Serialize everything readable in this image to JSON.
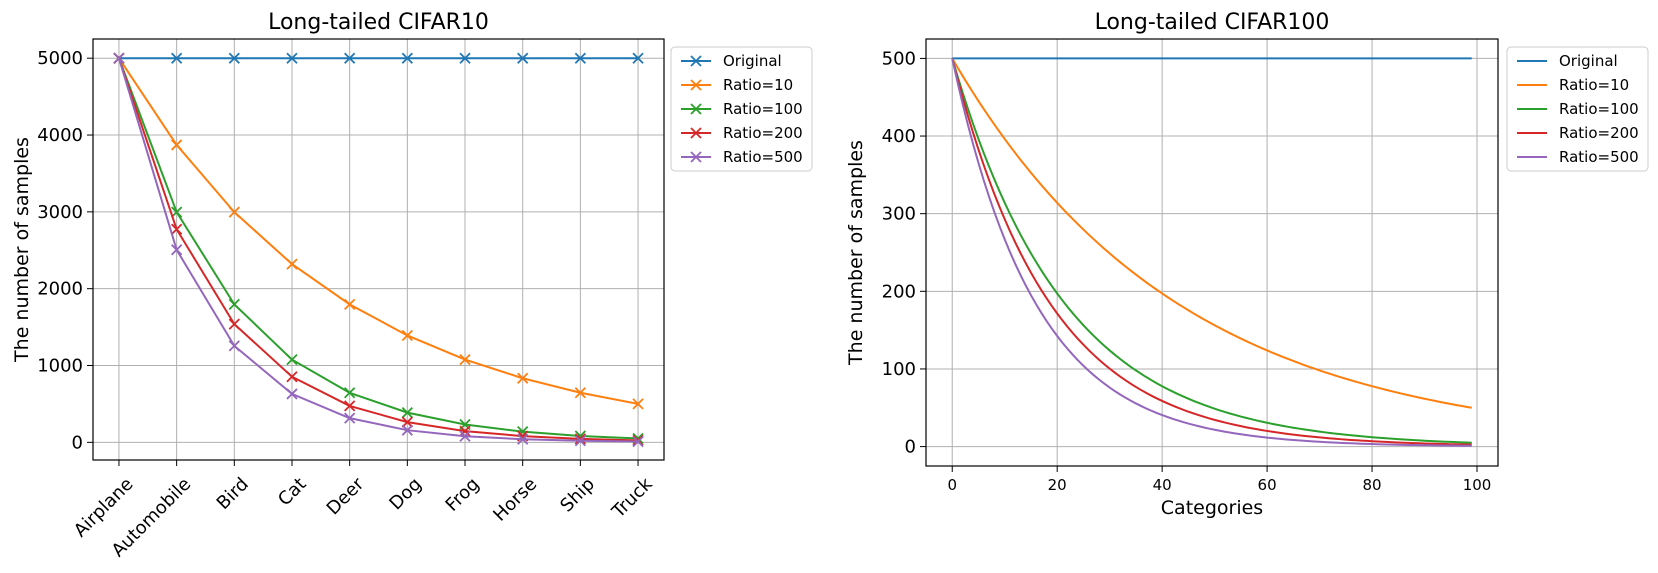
{
  "chart_data": [
    {
      "type": "line",
      "title": "Long-tailed CIFAR10",
      "xlabel": "",
      "ylabel": "The number of samples",
      "categories": [
        "Airplane",
        "Automobile",
        "Bird",
        "Cat",
        "Deer",
        "Dog",
        "Frog",
        "Horse",
        "Ship",
        "Truck"
      ],
      "ylim": [
        -230,
        5250
      ],
      "yticks": [
        0,
        1000,
        2000,
        3000,
        4000,
        5000
      ],
      "grid": true,
      "markers": true,
      "legend": "outside-upper-right",
      "series": [
        {
          "name": "Original",
          "color": "#1f77b4",
          "values": [
            5000,
            5000,
            5000,
            5000,
            5000,
            5000,
            5000,
            5000,
            5000,
            5000
          ]
        },
        {
          "name": "Ratio=10",
          "color": "#ff7f0e",
          "values": [
            5000,
            3871,
            2997,
            2320,
            1796,
            1391,
            1077,
            834,
            645,
            500
          ]
        },
        {
          "name": "Ratio=100",
          "color": "#2ca02c",
          "values": [
            5000,
            2997,
            1796,
            1077,
            645,
            387,
            232,
            139,
            83,
            50
          ]
        },
        {
          "name": "Ratio=200",
          "color": "#d62728",
          "values": [
            5000,
            2774,
            1539,
            854,
            474,
            263,
            146,
            81,
            45,
            25
          ]
        },
        {
          "name": "Ratio=500",
          "color": "#9467bd",
          "values": [
            5000,
            2506,
            1256,
            630,
            315,
            158,
            79,
            40,
            20,
            10
          ]
        }
      ]
    },
    {
      "type": "line",
      "title": "Long-tailed CIFAR100",
      "xlabel": "Categories",
      "ylabel": "The number of samples",
      "xlim": [
        -5,
        104
      ],
      "ylim": [
        -25,
        525
      ],
      "xticks": [
        0,
        20,
        40,
        60,
        80,
        100
      ],
      "yticks": [
        0,
        100,
        200,
        300,
        400,
        500
      ],
      "grid": true,
      "markers": false,
      "legend": "outside-upper-right",
      "n_classes": 100,
      "max_samples": 500,
      "series": [
        {
          "name": "Original",
          "color": "#1f77b4",
          "imbalance_ratio": 1
        },
        {
          "name": "Ratio=10",
          "color": "#ff7f0e",
          "imbalance_ratio": 10
        },
        {
          "name": "Ratio=100",
          "color": "#2ca02c",
          "imbalance_ratio": 100
        },
        {
          "name": "Ratio=200",
          "color": "#d62728",
          "imbalance_ratio": 200
        },
        {
          "name": "Ratio=500",
          "color": "#9467bd",
          "imbalance_ratio": 500
        }
      ]
    }
  ]
}
